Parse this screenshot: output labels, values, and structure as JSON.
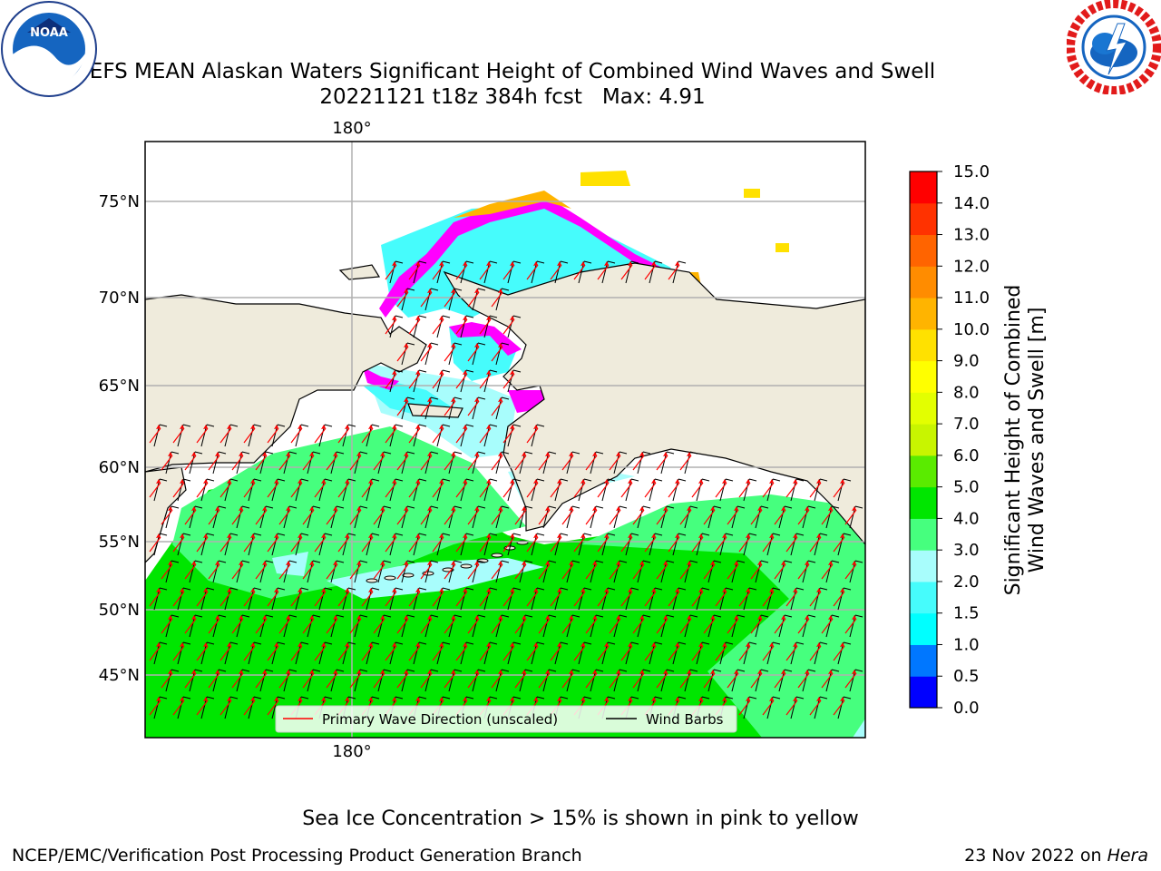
{
  "header": {
    "title": "EFS MEAN Alaskan Waters Significant Height of Combined Wind Waves and Swell",
    "subtitle": "20221121 t18z 384h fcst",
    "max_label": "Max: 4.91"
  },
  "map": {
    "top_longitude_label": "180°",
    "bottom_longitude_label": "180°",
    "latitude_labels": [
      "75°N",
      "70°N",
      "65°N",
      "60°N",
      "55°N",
      "50°N",
      "45°N"
    ],
    "land_color": "#efebdc",
    "wave_arrow_color": "#ff0000",
    "wind_barb_color": "#000000"
  },
  "legend": {
    "wave_direction_label": "Primary Wave Direction (unscaled)",
    "wind_barbs_label": "Wind Barbs"
  },
  "colorbar": {
    "label_line1": "Significant Height of Combined",
    "label_line2": "Wind Waves and Swell [m]",
    "ticks": [
      "0.0",
      "0.5",
      "1.0",
      "1.5",
      "2.0",
      "3.0",
      "4.0",
      "5.0",
      "6.0",
      "7.0",
      "8.0",
      "9.0",
      "10.0",
      "11.0",
      "12.0",
      "13.0",
      "14.0",
      "15.0"
    ],
    "colors": [
      "#0000ff",
      "#0077ff",
      "#00ffff",
      "#46fcfc",
      "#a8fdfc",
      "#46ff7e",
      "#00e600",
      "#5aeb00",
      "#c8f500",
      "#e3ff00",
      "#ffff00",
      "#ffe100",
      "#ffb400",
      "#ff8c00",
      "#ff6400",
      "#ff3200",
      "#ff0000"
    ]
  },
  "footer": {
    "ice_note": "Sea Ice Concentration > 15% is shown in pink to yellow",
    "credit": "NCEP/EMC/Verification Post Processing Product Generation Branch",
    "date": "23 Nov 2022 on",
    "machine": "Hera"
  }
}
